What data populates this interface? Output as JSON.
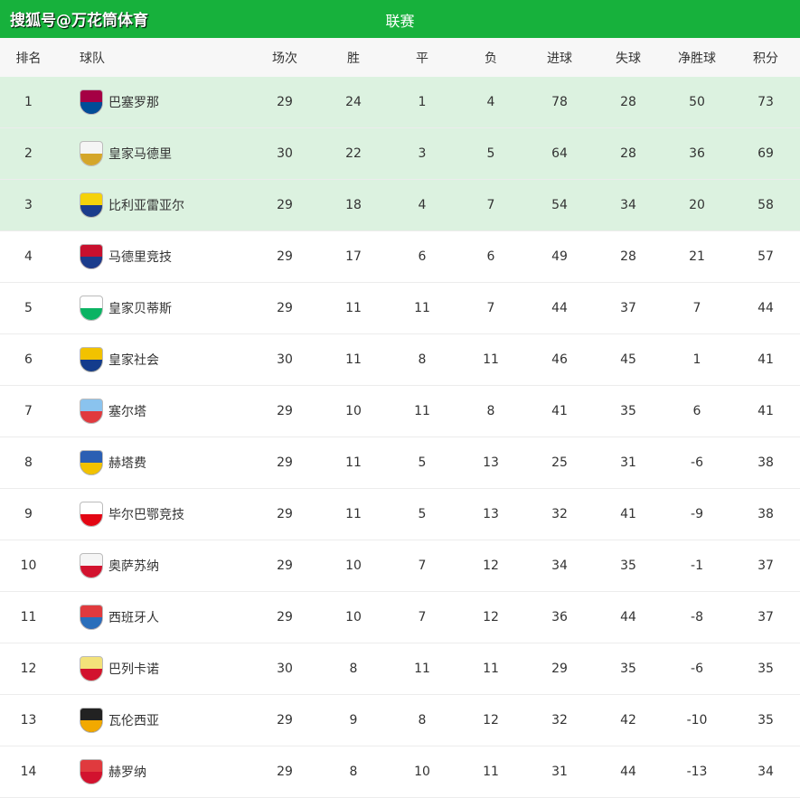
{
  "header": {
    "brand": "搜狐号@万花筒体育",
    "title": "联赛"
  },
  "columns": [
    "排名",
    "球队",
    "场次",
    "胜",
    "平",
    "负",
    "进球",
    "失球",
    "净胜球",
    "积分"
  ],
  "rows": [
    {
      "rank": "1",
      "team": "巴塞罗那",
      "played": "29",
      "won": "24",
      "drawn": "1",
      "lost": "4",
      "gf": "78",
      "ga": "28",
      "gd": "50",
      "pts": "73",
      "logo": [
        "#a50044",
        "#004d98"
      ],
      "highlight": true
    },
    {
      "rank": "2",
      "team": "皇家马德里",
      "played": "30",
      "won": "22",
      "drawn": "3",
      "lost": "5",
      "gf": "64",
      "ga": "28",
      "gd": "36",
      "pts": "69",
      "logo": [
        "#f5f5f5",
        "#d4a62a"
      ],
      "highlight": true
    },
    {
      "rank": "3",
      "team": "比利亚雷亚尔",
      "played": "29",
      "won": "18",
      "drawn": "4",
      "lost": "7",
      "gf": "54",
      "ga": "34",
      "gd": "20",
      "pts": "58",
      "logo": [
        "#f5d20a",
        "#1b3c8c"
      ],
      "highlight": true
    },
    {
      "rank": "4",
      "team": "马德里竞技",
      "played": "29",
      "won": "17",
      "drawn": "6",
      "lost": "6",
      "gf": "49",
      "ga": "28",
      "gd": "21",
      "pts": "57",
      "logo": [
        "#c8102e",
        "#1b3c8c"
      ],
      "highlight": false
    },
    {
      "rank": "5",
      "team": "皇家贝蒂斯",
      "played": "29",
      "won": "11",
      "drawn": "11",
      "lost": "7",
      "gf": "44",
      "ga": "37",
      "gd": "7",
      "pts": "44",
      "logo": [
        "#ffffff",
        "#0bb363"
      ],
      "highlight": false
    },
    {
      "rank": "6",
      "team": "皇家社会",
      "played": "30",
      "won": "11",
      "drawn": "8",
      "lost": "11",
      "gf": "46",
      "ga": "45",
      "gd": "1",
      "pts": "41",
      "logo": [
        "#f2c200",
        "#143c8c"
      ],
      "highlight": false
    },
    {
      "rank": "7",
      "team": "塞尔塔",
      "played": "29",
      "won": "10",
      "drawn": "11",
      "lost": "8",
      "gf": "41",
      "ga": "35",
      "gd": "6",
      "pts": "41",
      "logo": [
        "#8ac3ee",
        "#e03a3e"
      ],
      "highlight": false
    },
    {
      "rank": "8",
      "team": "赫塔费",
      "played": "29",
      "won": "11",
      "drawn": "5",
      "lost": "13",
      "gf": "25",
      "ga": "31",
      "gd": "-6",
      "pts": "38",
      "logo": [
        "#2b5fb3",
        "#f2c200"
      ],
      "highlight": false
    },
    {
      "rank": "9",
      "team": "毕尔巴鄂竞技",
      "played": "29",
      "won": "11",
      "drawn": "5",
      "lost": "13",
      "gf": "32",
      "ga": "41",
      "gd": "-9",
      "pts": "38",
      "logo": [
        "#ffffff",
        "#e30613"
      ],
      "highlight": false
    },
    {
      "rank": "10",
      "team": "奥萨苏纳",
      "played": "29",
      "won": "10",
      "drawn": "7",
      "lost": "12",
      "gf": "34",
      "ga": "35",
      "gd": "-1",
      "pts": "37",
      "logo": [
        "#f5f5f5",
        "#d2122e"
      ],
      "highlight": false
    },
    {
      "rank": "11",
      "team": "西班牙人",
      "played": "29",
      "won": "10",
      "drawn": "7",
      "lost": "12",
      "gf": "36",
      "ga": "44",
      "gd": "-8",
      "pts": "37",
      "logo": [
        "#e03a3e",
        "#2a6ebb"
      ],
      "highlight": false
    },
    {
      "rank": "12",
      "team": "巴列卡诺",
      "played": "30",
      "won": "8",
      "drawn": "11",
      "lost": "11",
      "gf": "29",
      "ga": "35",
      "gd": "-6",
      "pts": "35",
      "logo": [
        "#f3e27a",
        "#d2122e"
      ],
      "highlight": false
    },
    {
      "rank": "13",
      "team": "瓦伦西亚",
      "played": "29",
      "won": "9",
      "drawn": "8",
      "lost": "12",
      "gf": "32",
      "ga": "42",
      "gd": "-10",
      "pts": "35",
      "logo": [
        "#222222",
        "#f2a900"
      ],
      "highlight": false
    },
    {
      "rank": "14",
      "team": "赫罗纳",
      "played": "29",
      "won": "8",
      "drawn": "10",
      "lost": "11",
      "gf": "31",
      "ga": "44",
      "gd": "-13",
      "pts": "34",
      "logo": [
        "#e03a3e",
        "#d2122e"
      ],
      "highlight": false
    }
  ]
}
